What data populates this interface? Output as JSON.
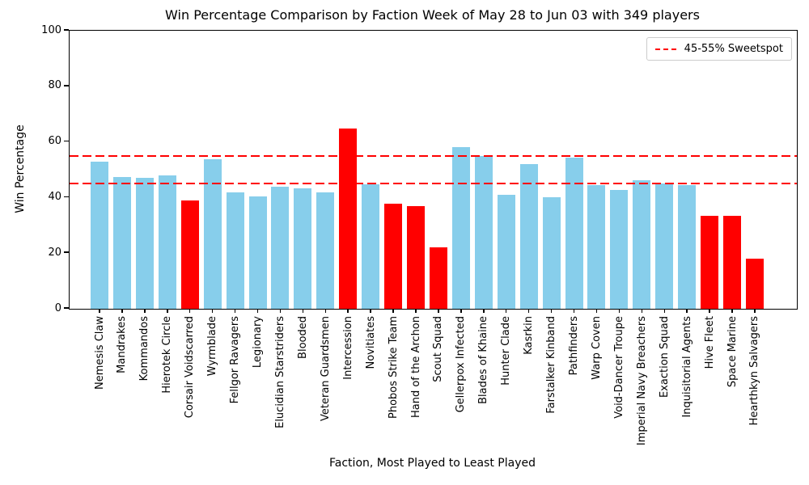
{
  "chart_data": {
    "type": "bar",
    "title": "Win Percentage Comparison by Faction Week of May 28 to Jun 03 with 349 players",
    "xlabel": "Faction, Most Played to Least Played",
    "ylabel": "Win Percentage",
    "ylim": [
      0,
      100
    ],
    "yticks": [
      0,
      20,
      40,
      60,
      80,
      100
    ],
    "grid": false,
    "legend": {
      "position": "upper right",
      "entries": [
        {
          "label": "45-55% Sweetspot",
          "line_color": "#ff0000",
          "line_style": "dashed"
        }
      ]
    },
    "reference_lines": [
      {
        "y": 45,
        "color": "#ff0000",
        "style": "dashed"
      },
      {
        "y": 55,
        "color": "#ff0000",
        "style": "dashed"
      }
    ],
    "categories": [
      "Nemesis Claw",
      "Mandrakes",
      "Kommandos",
      "Hierotek Circle",
      "Corsair Voidscarred",
      "Wyrmblade",
      "Fellgor Ravagers",
      "Legionary",
      "Elucidian Starstriders",
      "Blooded",
      "Veteran Guardsmen",
      "Intercession",
      "Novitiates",
      "Phobos Strike Team",
      "Hand of the Archon",
      "Scout Squad",
      "Gellerpox Infected",
      "Blades of Khaine",
      "Hunter Clade",
      "Kasrkin",
      "Farstalker Kinband",
      "Pathfinders",
      "Warp Coven",
      "Void-Dancer Troupe",
      "Imperial Navy Breachers",
      "Exaction Squad",
      "Inquisitorial Agents",
      "Hive Fleet",
      "Space Marine",
      "Hearthkyn Salvagers"
    ],
    "values": [
      52.9,
      47.4,
      47.1,
      48.0,
      39.0,
      53.7,
      42.0,
      40.4,
      44.0,
      43.3,
      42.0,
      64.7,
      44.9,
      37.9,
      36.8,
      22.0,
      58.1,
      55.0,
      40.9,
      52.1,
      40.0,
      54.4,
      44.5,
      42.8,
      46.2,
      45.1,
      44.5,
      33.3,
      33.3,
      18.0
    ],
    "bar_colors": [
      "#87ceeb",
      "#87ceeb",
      "#87ceeb",
      "#87ceeb",
      "#ff0000",
      "#87ceeb",
      "#87ceeb",
      "#87ceeb",
      "#87ceeb",
      "#87ceeb",
      "#87ceeb",
      "#ff0000",
      "#87ceeb",
      "#ff0000",
      "#ff0000",
      "#ff0000",
      "#87ceeb",
      "#87ceeb",
      "#87ceeb",
      "#87ceeb",
      "#87ceeb",
      "#87ceeb",
      "#87ceeb",
      "#87ceeb",
      "#87ceeb",
      "#87ceeb",
      "#87ceeb",
      "#ff0000",
      "#ff0000",
      "#ff0000"
    ],
    "colors": {
      "default_bar": "#87ceeb",
      "flagged_bar": "#ff0000",
      "reference_line": "#ff0000",
      "axis": "#000000",
      "text": "#000000"
    }
  }
}
